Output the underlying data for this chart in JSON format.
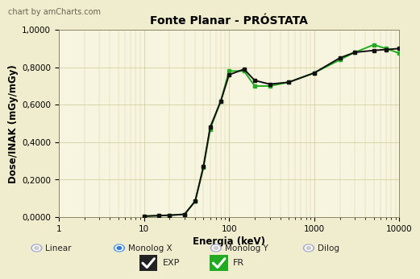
{
  "title": "Fonte Planar - PRÓSTATA",
  "xlabel": "Energia (keV)",
  "ylabel": "Dose/INAK (mGy/mGy)",
  "watermark": "chart by amCharts.com",
  "bg_color": "#f0edce",
  "plot_bg_color": "#f7f5e0",
  "grid_color": "#d8d4a8",
  "exp_x": [
    10,
    15,
    20,
    30,
    40,
    50,
    60,
    80,
    100,
    150,
    200,
    300,
    500,
    1000,
    2000,
    3000,
    5000,
    7000,
    10000
  ],
  "exp_y": [
    0.005,
    0.008,
    0.01,
    0.015,
    0.085,
    0.27,
    0.48,
    0.62,
    0.76,
    0.79,
    0.73,
    0.71,
    0.72,
    0.77,
    0.85,
    0.88,
    0.89,
    0.895,
    0.9
  ],
  "fr_x": [
    10,
    15,
    20,
    30,
    40,
    50,
    60,
    80,
    100,
    150,
    200,
    300,
    500,
    1000,
    2000,
    3000,
    5000,
    7000,
    10000
  ],
  "fr_y": [
    0.005,
    0.008,
    0.01,
    0.015,
    0.085,
    0.265,
    0.47,
    0.62,
    0.78,
    0.78,
    0.7,
    0.7,
    0.72,
    0.77,
    0.84,
    0.88,
    0.92,
    0.9,
    0.875
  ],
  "exp_color": "#111111",
  "fr_color": "#22aa22",
  "ylim": [
    0,
    1.0
  ],
  "yticks": [
    0.0,
    0.2,
    0.4,
    0.6,
    0.8,
    1.0
  ],
  "ytick_labels": [
    "0,0000",
    "0,2000",
    "0,4000",
    "0,6000",
    "0,8000",
    "1,0000"
  ],
  "xlim": [
    1,
    10000
  ],
  "xticks": [
    1,
    10,
    100,
    1000,
    10000
  ],
  "xtick_labels": [
    "1",
    "10",
    "100",
    "1000",
    "10000"
  ],
  "legend_items": [
    "Linear",
    "Monolog X",
    "Monolog Y",
    "Dilog"
  ],
  "legend_active": 1,
  "title_fontsize": 10,
  "label_fontsize": 8.5,
  "tick_fontsize": 7.5,
  "watermark_fontsize": 7
}
